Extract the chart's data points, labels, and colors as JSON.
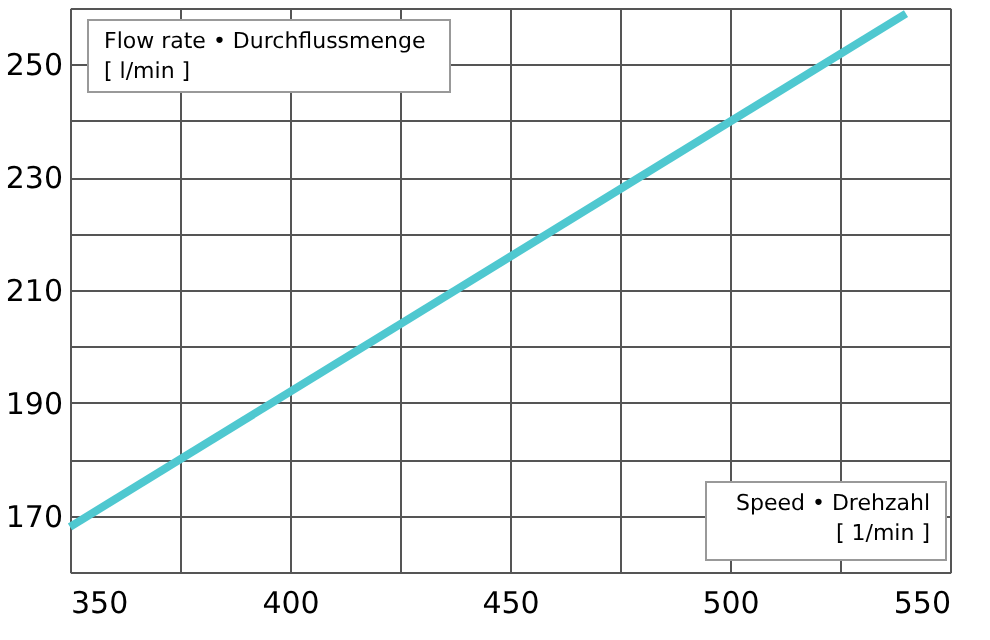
{
  "chart_data": {
    "type": "line",
    "x": [
      350,
      540
    ],
    "series": [
      {
        "color": "#4fc8d0",
        "values": [
          168,
          259
        ]
      }
    ],
    "xlabel": "Speed • Drehzahl\n[ 1/min ]",
    "ylabel": "Flow rate • Durchflussmenge\n[ l/min ]",
    "xlim": [
      350,
      550
    ],
    "xticks": [
      350,
      {
        "value": 375,
        "label": null
      },
      400,
      {
        "value": 425,
        "label": null
      },
      450,
      {
        "value": 475,
        "label": null
      },
      500,
      {
        "value": 525,
        "label": null
      },
      550
    ],
    "ylim": [
      160,
      260
    ],
    "yticks": [
      {
        "value": 160,
        "label": null
      },
      170,
      {
        "value": 180,
        "label": null
      },
      190,
      {
        "value": 200,
        "label": null
      },
      210,
      {
        "value": 220,
        "label": null
      },
      230,
      {
        "value": 240,
        "label": null
      },
      250,
      {
        "value": 260,
        "label": null
      }
    ],
    "grid": true,
    "line_style": "solid",
    "marker": "none",
    "legend": false
  }
}
